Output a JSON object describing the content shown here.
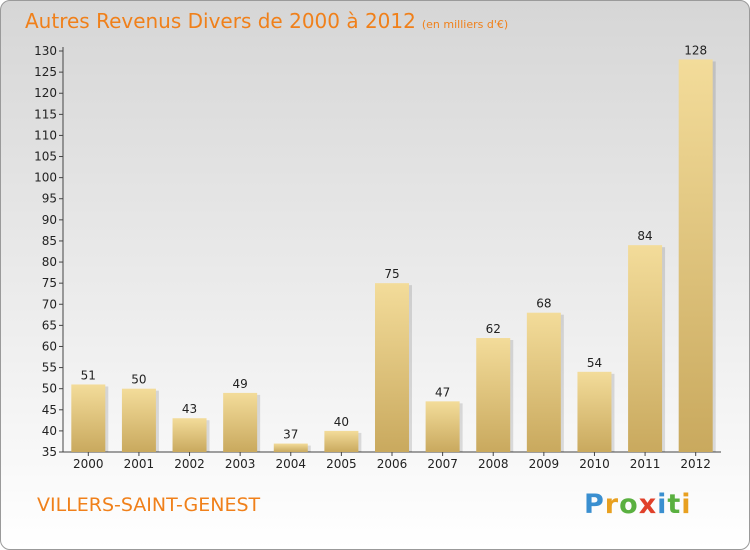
{
  "header": {
    "title": "Autres Revenus Divers de 2000 à 2012",
    "unit": "(en milliers d'€)"
  },
  "footer": {
    "city": "VILLERS-SAINT-GENEST",
    "logo_text": "Proxiti",
    "logo_colors": [
      "#3a8fd0",
      "#e8a020",
      "#5ab040",
      "#e0402a",
      "#3a8fd0",
      "#5ab040",
      "#e8a020"
    ]
  },
  "colors": {
    "title": "#f0801a",
    "bar_light": "#f3dc9a",
    "bar_dark": "#c9a95e",
    "axis_text": "#222222"
  },
  "chart_data": {
    "type": "bar",
    "title": "Autres Revenus Divers de 2000 à 2012",
    "categories": [
      "2000",
      "2001",
      "2002",
      "2003",
      "2004",
      "2005",
      "2006",
      "2007",
      "2008",
      "2009",
      "2010",
      "2011",
      "2012"
    ],
    "values": [
      51,
      50,
      43,
      49,
      37,
      40,
      75,
      47,
      62,
      68,
      54,
      84,
      128
    ],
    "ylim": [
      35,
      130
    ],
    "yticks": [
      35,
      40,
      45,
      50,
      55,
      60,
      65,
      70,
      75,
      80,
      85,
      90,
      95,
      100,
      105,
      110,
      115,
      120,
      125,
      130
    ],
    "grid": false,
    "legend": "none",
    "data_labels": true
  }
}
